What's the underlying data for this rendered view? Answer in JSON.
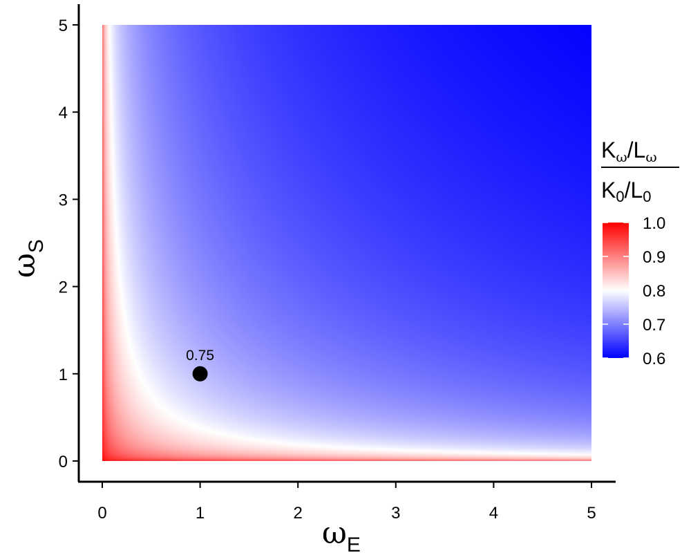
{
  "chart_data": {
    "type": "heatmap",
    "title": "",
    "x_axis": {
      "symbol": "ω",
      "subscript": "E",
      "range": [
        0,
        5
      ],
      "ticks": [
        0,
        1,
        2,
        3,
        4,
        5
      ]
    },
    "y_axis": {
      "symbol": "ω",
      "subscript": "S",
      "range": [
        0,
        5
      ],
      "ticks": [
        0,
        1,
        2,
        3,
        4,
        5
      ]
    },
    "value_model": "1 - 0.5*(ωE*ωS)/(1 + ωE*ωS) at ωS = ωE = 1 equals 0.75",
    "color_scale": {
      "low": {
        "value": 0.6,
        "color": "#0000ff"
      },
      "mid": {
        "value": 0.8,
        "color": "#ffffff"
      },
      "high": {
        "value": 1.0,
        "color": "#ff0000"
      }
    },
    "legend": {
      "placement": "right",
      "title_numerator": {
        "K": "K",
        "K_sub": "ω",
        "slash": "/",
        "L": "L",
        "L_sub": "ω"
      },
      "title_denominator": {
        "K": "K",
        "K_sub": "0",
        "slash": "/",
        "L": "L",
        "L_sub": "0"
      },
      "ticks": [
        1.0,
        0.9,
        0.8,
        0.7,
        0.6
      ],
      "tick_labels": [
        "1.0",
        "0.9",
        "0.8",
        "0.7",
        "0.6"
      ]
    },
    "annotations": [
      {
        "x": 1,
        "y": 1,
        "label": "0.75",
        "marker": "filled-circle"
      }
    ],
    "grid": false
  }
}
